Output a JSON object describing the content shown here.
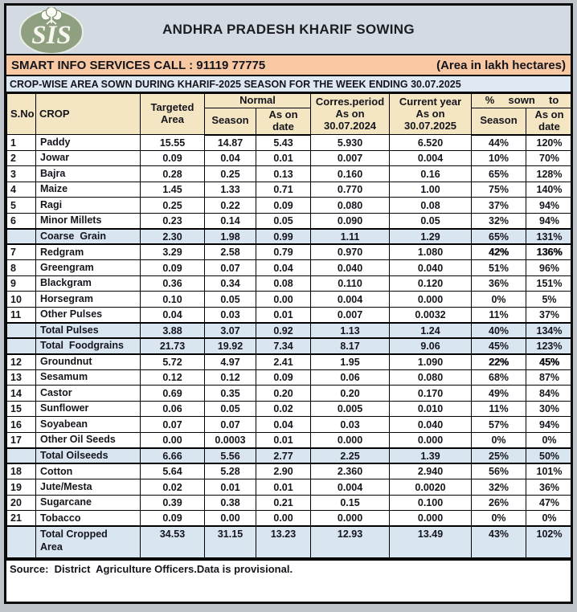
{
  "banner": {
    "title": "ANDHRA PRADESH KHARIF SOWING",
    "logo_text": "SIS"
  },
  "info_bar": {
    "left": "SMART INFO SERVICES CALL : 91119 77775",
    "right": "(Area in lakh hectares)"
  },
  "subtitle": "CROP-WISE AREA SOWN DURING KHARIF-2025 SEASON FOR THE WEEK ENDING 30.07.2025",
  "table": {
    "headers": {
      "sno": "S.No",
      "crop": "CROP",
      "targeted": "Targeted\nArea",
      "normal_group": "Normal",
      "normal_season": "Season",
      "normal_as_on_date": "As on\ndate",
      "corres_period": "Corres.period\nAs on\n30.07.2024",
      "current_year": "Current year\nAs on\n30.07.2025",
      "pct_group": "%  sown  to",
      "pct_season": "Season",
      "pct_as_on_date": "As on\ndate"
    },
    "rows": [
      {
        "type": "data",
        "sno": "1",
        "crop": "Paddy",
        "values": [
          "15.55",
          "14.87",
          "5.43",
          "5.930",
          "6.520",
          "44%",
          "120%"
        ]
      },
      {
        "type": "data",
        "sno": "2",
        "crop": "Jowar",
        "values": [
          "0.09",
          "0.04",
          "0.01",
          "0.007",
          "0.004",
          "10%",
          "70%"
        ]
      },
      {
        "type": "data",
        "sno": "3",
        "crop": "Bajra",
        "values": [
          "0.28",
          "0.25",
          "0.13",
          "0.160",
          "0.16",
          "65%",
          "128%"
        ]
      },
      {
        "type": "data",
        "sno": "4",
        "crop": "Maize",
        "values": [
          "1.45",
          "1.33",
          "0.71",
          "0.770",
          "1.00",
          "75%",
          "140%"
        ]
      },
      {
        "type": "data",
        "sno": "5",
        "crop": "Ragi",
        "values": [
          "0.25",
          "0.22",
          "0.09",
          "0.080",
          "0.08",
          "37%",
          "94%"
        ]
      },
      {
        "type": "data",
        "sno": "6",
        "crop": "Minor Millets",
        "values": [
          "0.23",
          "0.14",
          "0.05",
          "0.090",
          "0.05",
          "32%",
          "94%"
        ]
      },
      {
        "type": "summary",
        "sno": "",
        "crop": "Coarse  Grain",
        "values": [
          "2.30",
          "1.98",
          "0.99",
          "1.11",
          "1.29",
          "65%",
          "131%"
        ]
      },
      {
        "type": "data",
        "sno": "7",
        "crop": "Redgram",
        "pct_bold": true,
        "values": [
          "3.29",
          "2.58",
          "0.79",
          "0.970",
          "1.080",
          "42%",
          "136%"
        ]
      },
      {
        "type": "data",
        "sno": "8",
        "crop": "Greengram",
        "values": [
          "0.09",
          "0.07",
          "0.04",
          "0.040",
          "0.040",
          "51%",
          "96%"
        ]
      },
      {
        "type": "data",
        "sno": "9",
        "crop": "Blackgram",
        "values": [
          "0.36",
          "0.34",
          "0.08",
          "0.110",
          "0.120",
          "36%",
          "151%"
        ]
      },
      {
        "type": "data",
        "sno": "10",
        "crop": "Horsegram",
        "values": [
          "0.10",
          "0.05",
          "0.00",
          "0.004",
          "0.000",
          "0%",
          "5%"
        ]
      },
      {
        "type": "data",
        "sno": "11",
        "crop": "Other Pulses",
        "values": [
          "0.04",
          "0.03",
          "0.01",
          "0.007",
          "0.0032",
          "11%",
          "37%"
        ]
      },
      {
        "type": "summary",
        "sno": "",
        "crop": "Total Pulses",
        "values": [
          "3.88",
          "3.07",
          "0.92",
          "1.13",
          "1.24",
          "40%",
          "134%"
        ]
      },
      {
        "type": "summary",
        "sno": "",
        "crop": "Total  Foodgrains",
        "values": [
          "21.73",
          "19.92",
          "7.34",
          "8.17",
          "9.06",
          "45%",
          "123%"
        ]
      },
      {
        "type": "data",
        "sno": "12",
        "crop": "Groundnut",
        "pct_bold": true,
        "values": [
          "5.72",
          "4.97",
          "2.41",
          "1.95",
          "1.090",
          "22%",
          "45%"
        ]
      },
      {
        "type": "data",
        "sno": "13",
        "crop": "Sesamum",
        "values": [
          "0.12",
          "0.12",
          "0.09",
          "0.06",
          "0.080",
          "68%",
          "87%"
        ]
      },
      {
        "type": "data",
        "sno": "14",
        "crop": "Castor",
        "values": [
          "0.69",
          "0.35",
          "0.20",
          "0.20",
          "0.170",
          "49%",
          "84%"
        ]
      },
      {
        "type": "data",
        "sno": "15",
        "crop": "Sunflower",
        "values": [
          "0.06",
          "0.05",
          "0.02",
          "0.005",
          "0.010",
          "11%",
          "30%"
        ]
      },
      {
        "type": "data",
        "sno": "16",
        "crop": "Soyabean",
        "values": [
          "0.07",
          "0.07",
          "0.04",
          "0.03",
          "0.040",
          "57%",
          "94%"
        ]
      },
      {
        "type": "data",
        "sno": "17",
        "crop": "Other Oil Seeds",
        "values": [
          "0.00",
          "0.0003",
          "0.01",
          "0.000",
          "0.000",
          "0%",
          "0%"
        ]
      },
      {
        "type": "summary",
        "sno": "",
        "crop": "Total Oilseeds",
        "values": [
          "6.66",
          "5.56",
          "2.77",
          "2.25",
          "1.39",
          "25%",
          "50%"
        ]
      },
      {
        "type": "data",
        "sno": "18",
        "crop": "Cotton",
        "values": [
          "5.64",
          "5.28",
          "2.90",
          "2.360",
          "2.940",
          "56%",
          "101%"
        ]
      },
      {
        "type": "data",
        "sno": "19",
        "crop": "Jute/Mesta",
        "values": [
          "0.02",
          "0.01",
          "0.01",
          "0.004",
          "0.0020",
          "32%",
          "36%"
        ]
      },
      {
        "type": "data",
        "sno": "20",
        "crop": "Sugarcane",
        "values": [
          "0.39",
          "0.38",
          "0.21",
          "0.15",
          "0.100",
          "26%",
          "47%"
        ]
      },
      {
        "type": "data",
        "sno": "21",
        "crop": "Tobacco",
        "values": [
          "0.09",
          "0.00",
          "0.00",
          "0.000",
          "0.000",
          "0%",
          "0%"
        ]
      },
      {
        "type": "summary",
        "tall": true,
        "sno": "",
        "crop": "Total Cropped\nArea",
        "values": [
          "34.53",
          "31.15",
          "13.23",
          "12.93",
          "13.49",
          "43%",
          "102%"
        ]
      }
    ],
    "source": "Source:  District  Agriculture Officers.Data is provisional."
  },
  "colors": {
    "banner_bg": "#d4dae1",
    "info_bar_bg": "#f7c8a2",
    "table_header_bg": "#f4e6c2",
    "summary_row_bg": "#d9e5f1",
    "subtitle_bg": "#dfe9f3",
    "border": "#000000",
    "logo_green": "#8fa080",
    "text": "#15151d"
  }
}
